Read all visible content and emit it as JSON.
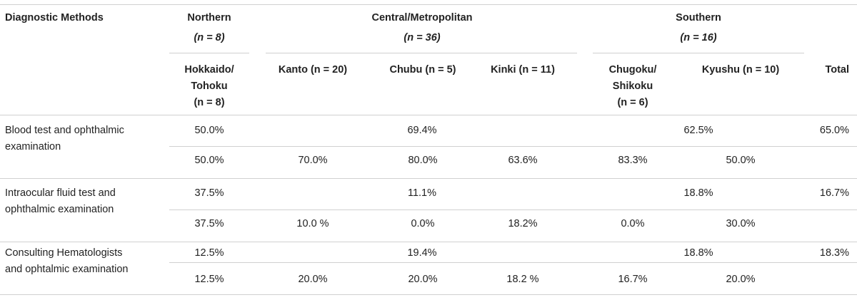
{
  "header": {
    "method_col": "Diagnostic Methods",
    "northern": {
      "name": "Northern",
      "n": "(n = 8)"
    },
    "central": {
      "name": "Central/Metropolitan",
      "n": "(n = 36)"
    },
    "southern": {
      "name": "Southern",
      "n": "(n = 16)"
    },
    "sub": {
      "hokkaido": "Hokkaido/\nTohoku\n(n = 8)",
      "kanto": "Kanto (n = 20)",
      "chubu": "Chubu (n = 5)",
      "kinki": "Kinki (n = 11)",
      "chugoku": "Chugoku/\nShikoku\n(n = 6)",
      "kyushu": "Kyushu (n = 10)",
      "total": "Total"
    }
  },
  "rows": [
    {
      "method": "Blood test and ophthalmic\nexamination",
      "summary": {
        "northern": "50.0%",
        "central": "69.4%",
        "southern": "62.5%",
        "total": "65.0%"
      },
      "detail": {
        "hokkaido": "50.0%",
        "kanto": "70.0%",
        "chubu": "80.0%",
        "kinki": "63.6%",
        "chugoku": "83.3%",
        "kyushu": "50.0%"
      }
    },
    {
      "method": "Intraocular fluid test and\nophthalmic examination",
      "summary": {
        "northern": "37.5%",
        "central": "11.1%",
        "southern": "18.8%",
        "total": "16.7%"
      },
      "detail": {
        "hokkaido": "37.5%",
        "kanto": "10.0 %",
        "chubu": "0.0%",
        "kinki": "18.2%",
        "chugoku": "0.0%",
        "kyushu": "30.0%"
      }
    },
    {
      "method": "Consulting Hematologists\nand ophtalmic examination",
      "summary": {
        "northern": "12.5%",
        "central": "19.4%",
        "southern": "18.8%",
        "total": "18.3%"
      },
      "detail": {
        "hokkaido": "12.5%",
        "kanto": "20.0%",
        "chubu": "20.0%",
        "kinki": "18.2 %",
        "chugoku": "16.7%",
        "kyushu": "20.0%"
      }
    }
  ]
}
